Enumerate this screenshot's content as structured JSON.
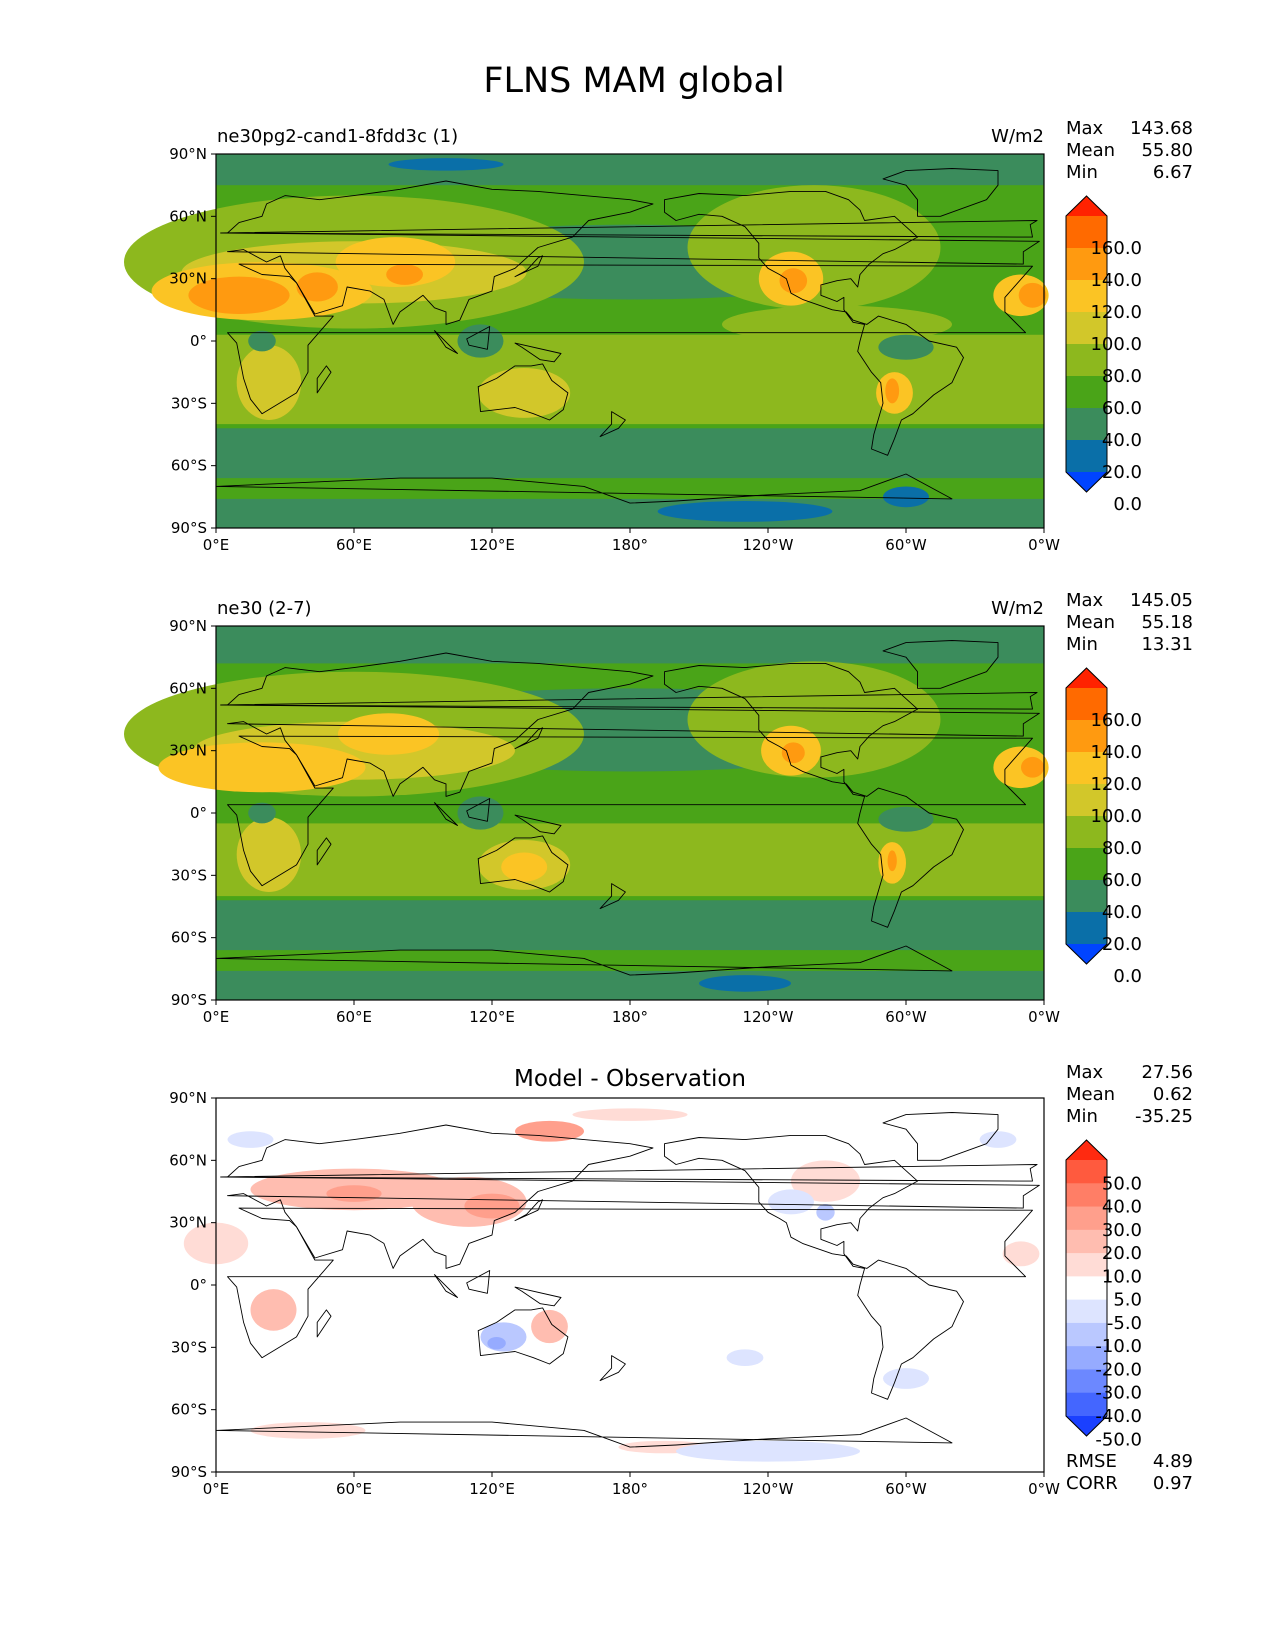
{
  "chart_data": {
    "type": "heatmap",
    "title": "FLNS MAM global",
    "x_ticks": [
      "0°E",
      "60°E",
      "120°E",
      "180°",
      "120°W",
      "60°W",
      "0°W"
    ],
    "y_ticks": [
      "90°N",
      "60°N",
      "30°N",
      "0°",
      "30°S",
      "60°S",
      "90°S"
    ],
    "panels": [
      {
        "name": "test",
        "left_title": "ne30pg2-cand1-8fdd3c (1)",
        "center_title": "",
        "right_title": "W/m2",
        "stats": [
          {
            "label": "Max",
            "value": "143.68"
          },
          {
            "label": "Mean",
            "value": "55.80"
          },
          {
            "label": "Min",
            "value": "6.67"
          }
        ],
        "colorbar_levels": [
          "160.0",
          "140.0",
          "120.0",
          "100.0",
          "80.0",
          "60.0",
          "40.0",
          "20.0",
          "0.0"
        ],
        "colorbar_colors": [
          "#ff2200",
          "#ff6a00",
          "#ff9a10",
          "#fbc424",
          "#d2c72a",
          "#8db81e",
          "#4aa418",
          "#3b8c5c",
          "#0a6fa8",
          "#0044ff"
        ]
      },
      {
        "name": "reference",
        "left_title": "ne30 (2-7)",
        "center_title": "",
        "right_title": "W/m2",
        "stats": [
          {
            "label": "Max",
            "value": "145.05"
          },
          {
            "label": "Mean",
            "value": "55.18"
          },
          {
            "label": "Min",
            "value": "13.31"
          }
        ],
        "colorbar_levels": [
          "160.0",
          "140.0",
          "120.0",
          "100.0",
          "80.0",
          "60.0",
          "40.0",
          "20.0",
          "0.0"
        ],
        "colorbar_colors": [
          "#ff2200",
          "#ff6a00",
          "#ff9a10",
          "#fbc424",
          "#d2c72a",
          "#8db81e",
          "#4aa418",
          "#3b8c5c",
          "#0a6fa8",
          "#0044ff"
        ]
      },
      {
        "name": "difference",
        "left_title": "",
        "center_title": "Model - Observation",
        "right_title": "",
        "stats": [
          {
            "label": "Max",
            "value": "27.56"
          },
          {
            "label": "Mean",
            "value": "0.62"
          },
          {
            "label": "Min",
            "value": "-35.25"
          }
        ],
        "colorbar_levels": [
          "50.0",
          "40.0",
          "30.0",
          "20.0",
          "10.0",
          "5.0",
          "-5.0",
          "-10.0",
          "-20.0",
          "-30.0",
          "-40.0",
          "-50.0"
        ],
        "colorbar_colors": [
          "#ff2a10",
          "#ff5a3e",
          "#ff7e66",
          "#ff9f8c",
          "#ffbdb0",
          "#ffdcd6",
          "#ffffff",
          "#dde4ff",
          "#bac8ff",
          "#96abff",
          "#6c88ff",
          "#4466ff",
          "#1a40ff"
        ],
        "extra_stats": [
          {
            "label": "RMSE",
            "value": "4.89"
          },
          {
            "label": "CORR",
            "value": "0.97"
          }
        ]
      }
    ]
  }
}
